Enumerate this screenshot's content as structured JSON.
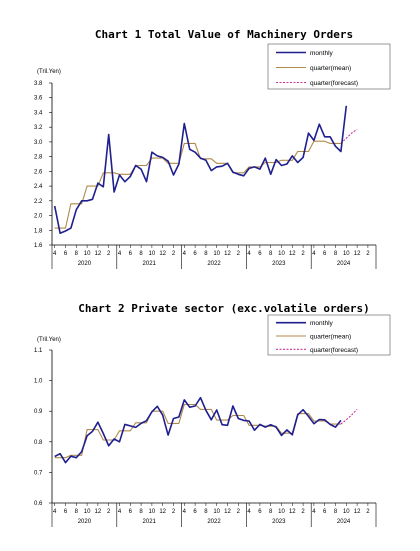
{
  "chart_data": [
    {
      "type": "line",
      "title": "Chart 1 Total Value of Machinery Orders",
      "unit_label": "(Tril.Yen)",
      "ylim": [
        1.6,
        3.8
      ],
      "yticks": [
        "1.6",
        "1.8",
        "2.0",
        "2.2",
        "2.4",
        "2.6",
        "2.8",
        "3.0",
        "3.2",
        "3.4",
        "3.6",
        "3.8"
      ],
      "x_start": "2020-04",
      "month_tick_labels": [
        "4",
        "6",
        "8",
        "10",
        "12",
        "2"
      ],
      "years": [
        "2020",
        "2021",
        "2022",
        "2023",
        "2024"
      ],
      "legend": [
        "monthly",
        "quarter(mean)",
        "quarter(forecast)"
      ],
      "colors": {
        "monthly": "#1f1f8f",
        "quarter_mean": "#b08a4a",
        "quarter_forecast": "#cc3399"
      },
      "series": [
        {
          "name": "monthly",
          "start": "2020-04",
          "values": [
            2.13,
            1.76,
            1.79,
            1.83,
            2.08,
            2.2,
            2.2,
            2.22,
            2.44,
            2.39,
            3.1,
            2.32,
            2.55,
            2.46,
            2.53,
            2.68,
            2.63,
            2.46,
            2.86,
            2.81,
            2.79,
            2.74,
            2.55,
            2.7,
            3.25,
            2.9,
            2.86,
            2.78,
            2.75,
            2.61,
            2.66,
            2.67,
            2.71,
            2.59,
            2.56,
            2.54,
            2.64,
            2.66,
            2.63,
            2.78,
            2.56,
            2.76,
            2.68,
            2.7,
            2.81,
            2.72,
            2.79,
            3.12,
            3.02,
            3.24,
            3.07,
            3.07,
            2.94,
            2.87,
            3.49
          ]
        },
        {
          "name": "quarter(mean)",
          "start": "2020-04",
          "values": [
            1.83,
            1.83,
            1.83,
            2.16,
            2.16,
            2.16,
            2.4,
            2.4,
            2.4,
            2.58,
            2.58,
            2.58,
            2.56,
            2.56,
            2.56,
            2.68,
            2.68,
            2.68,
            2.78,
            2.78,
            2.78,
            2.71,
            2.71,
            2.71,
            2.98,
            2.98,
            2.98,
            2.77,
            2.77,
            2.77,
            2.71,
            2.71,
            2.71,
            2.58,
            2.58,
            2.58,
            2.66,
            2.66,
            2.66,
            2.72,
            2.72,
            2.72,
            2.75,
            2.75,
            2.75,
            2.87,
            2.87,
            2.87,
            3.01,
            3.01,
            3.01,
            2.98,
            2.98,
            2.98
          ]
        },
        {
          "name": "quarter(forecast)",
          "start": "2024-09",
          "values": [
            2.98,
            3.05,
            3.12,
            3.17
          ]
        }
      ]
    },
    {
      "type": "line",
      "title": "Chart 2 Private sector (exc.volatile orders)",
      "unit_label": "(Tril.Yen)",
      "ylim": [
        0.6,
        1.1
      ],
      "yticks": [
        "0.6",
        "0.7",
        "0.8",
        "0.9",
        "1.0",
        "1.1"
      ],
      "x_start": "2020-04",
      "month_tick_labels": [
        "4",
        "6",
        "8",
        "10",
        "12",
        "2"
      ],
      "years": [
        "2020",
        "2021",
        "2022",
        "2023",
        "2024"
      ],
      "legend": [
        "monthly",
        "quarter(mean)",
        "quarter(forecast)"
      ],
      "colors": {
        "monthly": "#1f1f8f",
        "quarter_mean": "#b08a4a",
        "quarter_forecast": "#cc3399"
      },
      "series": [
        {
          "name": "monthly",
          "start": "2020-04",
          "values": [
            0.752,
            0.761,
            0.732,
            0.753,
            0.748,
            0.768,
            0.82,
            0.834,
            0.864,
            0.827,
            0.787,
            0.809,
            0.8,
            0.857,
            0.852,
            0.847,
            0.86,
            0.869,
            0.898,
            0.916,
            0.887,
            0.822,
            0.876,
            0.881,
            0.937,
            0.913,
            0.917,
            0.944,
            0.903,
            0.872,
            0.904,
            0.856,
            0.854,
            0.917,
            0.876,
            0.87,
            0.868,
            0.838,
            0.857,
            0.848,
            0.856,
            0.848,
            0.821,
            0.839,
            0.823,
            0.888,
            0.905,
            0.883,
            0.859,
            0.873,
            0.872,
            0.857,
            0.848,
            0.87
          ]
        },
        {
          "name": "quarter(mean)",
          "start": "2020-04",
          "values": [
            0.748,
            0.748,
            0.748,
            0.756,
            0.756,
            0.756,
            0.84,
            0.84,
            0.84,
            0.806,
            0.806,
            0.806,
            0.836,
            0.836,
            0.836,
            0.862,
            0.862,
            0.862,
            0.9,
            0.9,
            0.9,
            0.86,
            0.86,
            0.86,
            0.922,
            0.922,
            0.922,
            0.906,
            0.906,
            0.906,
            0.871,
            0.871,
            0.871,
            0.886,
            0.886,
            0.886,
            0.854,
            0.854,
            0.854,
            0.851,
            0.851,
            0.851,
            0.828,
            0.828,
            0.828,
            0.892,
            0.892,
            0.892,
            0.868,
            0.868,
            0.868,
            0.858,
            0.858,
            0.858
          ]
        },
        {
          "name": "quarter(forecast)",
          "start": "2024-09",
          "values": [
            0.858,
            0.872,
            0.888,
            0.906
          ]
        }
      ]
    }
  ]
}
